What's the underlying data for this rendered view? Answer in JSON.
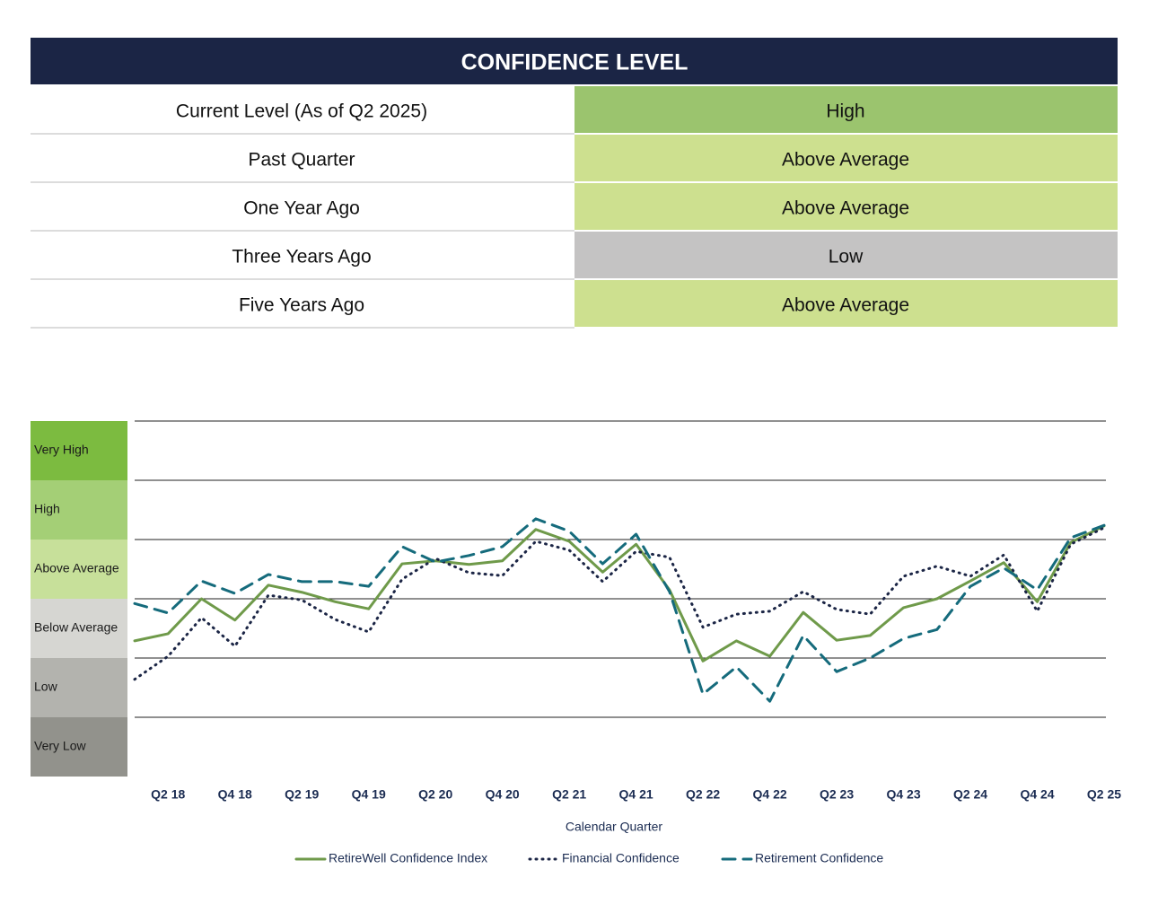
{
  "table": {
    "title": "CONFIDENCE LEVEL",
    "rows": [
      {
        "label": "Current Level (As of Q2 2025)",
        "level": "High",
        "color": "#9bc46e"
      },
      {
        "label": "Past Quarter",
        "level": "Above Average",
        "color": "#cde08f"
      },
      {
        "label": "One Year Ago",
        "level": "Above Average",
        "color": "#cde08f"
      },
      {
        "label": "Three Years Ago",
        "level": "Low",
        "color": "#c4c3c3"
      },
      {
        "label": "Five Years Ago",
        "level": "Above Average",
        "color": "#cde08f"
      }
    ]
  },
  "chart_data": {
    "type": "line",
    "x_label": "Calendar Quarter",
    "categories": [
      null,
      "Q2 18",
      null,
      "Q4 18",
      null,
      "Q2 19",
      null,
      "Q4 19",
      null,
      "Q2 20",
      null,
      "Q4 20",
      null,
      "Q2 21",
      null,
      "Q4 21",
      null,
      "Q2 22",
      null,
      "Q4 22",
      null,
      "Q2 23",
      null,
      "Q4 23",
      null,
      "Q2 24",
      null,
      "Q4 24",
      null,
      "Q2 25"
    ],
    "ylim": [
      0,
      6
    ],
    "ygrid": [
      1,
      2,
      3,
      4,
      5,
      6
    ],
    "bands": [
      {
        "name": "Very Low",
        "color": "#92928c"
      },
      {
        "name": "Low",
        "color": "#b3b3ae"
      },
      {
        "name": "Below Average",
        "color": "#d6d6d2"
      },
      {
        "name": "Above Average",
        "color": "#c7e09a"
      },
      {
        "name": "High",
        "color": "#a4cf76"
      },
      {
        "name": "Very High",
        "color": "#7cbb40"
      }
    ],
    "series": [
      {
        "name": "RetireWell Confidence Index",
        "color": "#6f9a4a",
        "style": "solid",
        "values": [
          2.29,
          2.41,
          3.0,
          2.64,
          3.23,
          3.11,
          2.95,
          2.83,
          3.59,
          3.64,
          3.58,
          3.64,
          4.17,
          3.97,
          3.45,
          3.92,
          3.15,
          1.95,
          2.29,
          2.03,
          2.77,
          2.3,
          2.38,
          2.85,
          3.0,
          3.3,
          3.61,
          2.95,
          3.95,
          4.23
        ]
      },
      {
        "name": "Financial Confidence",
        "color": "#1b2545",
        "style": "dotted",
        "values": [
          1.64,
          2.03,
          2.68,
          2.2,
          3.06,
          2.98,
          2.65,
          2.44,
          3.33,
          3.68,
          3.44,
          3.39,
          3.97,
          3.82,
          3.29,
          3.8,
          3.7,
          2.52,
          2.74,
          2.79,
          3.12,
          2.82,
          2.74,
          3.38,
          3.55,
          3.38,
          3.74,
          2.79,
          3.92,
          4.2
        ]
      },
      {
        "name": "Retirement Confidence",
        "color": "#156b7c",
        "style": "dashed",
        "values": [
          2.92,
          2.76,
          3.3,
          3.09,
          3.41,
          3.29,
          3.29,
          3.21,
          3.88,
          3.62,
          3.73,
          3.88,
          4.35,
          4.14,
          3.59,
          4.09,
          3.12,
          1.39,
          1.85,
          1.27,
          2.38,
          1.77,
          2.0,
          2.33,
          2.48,
          3.21,
          3.52,
          3.15,
          4.03,
          4.24
        ]
      }
    ]
  }
}
